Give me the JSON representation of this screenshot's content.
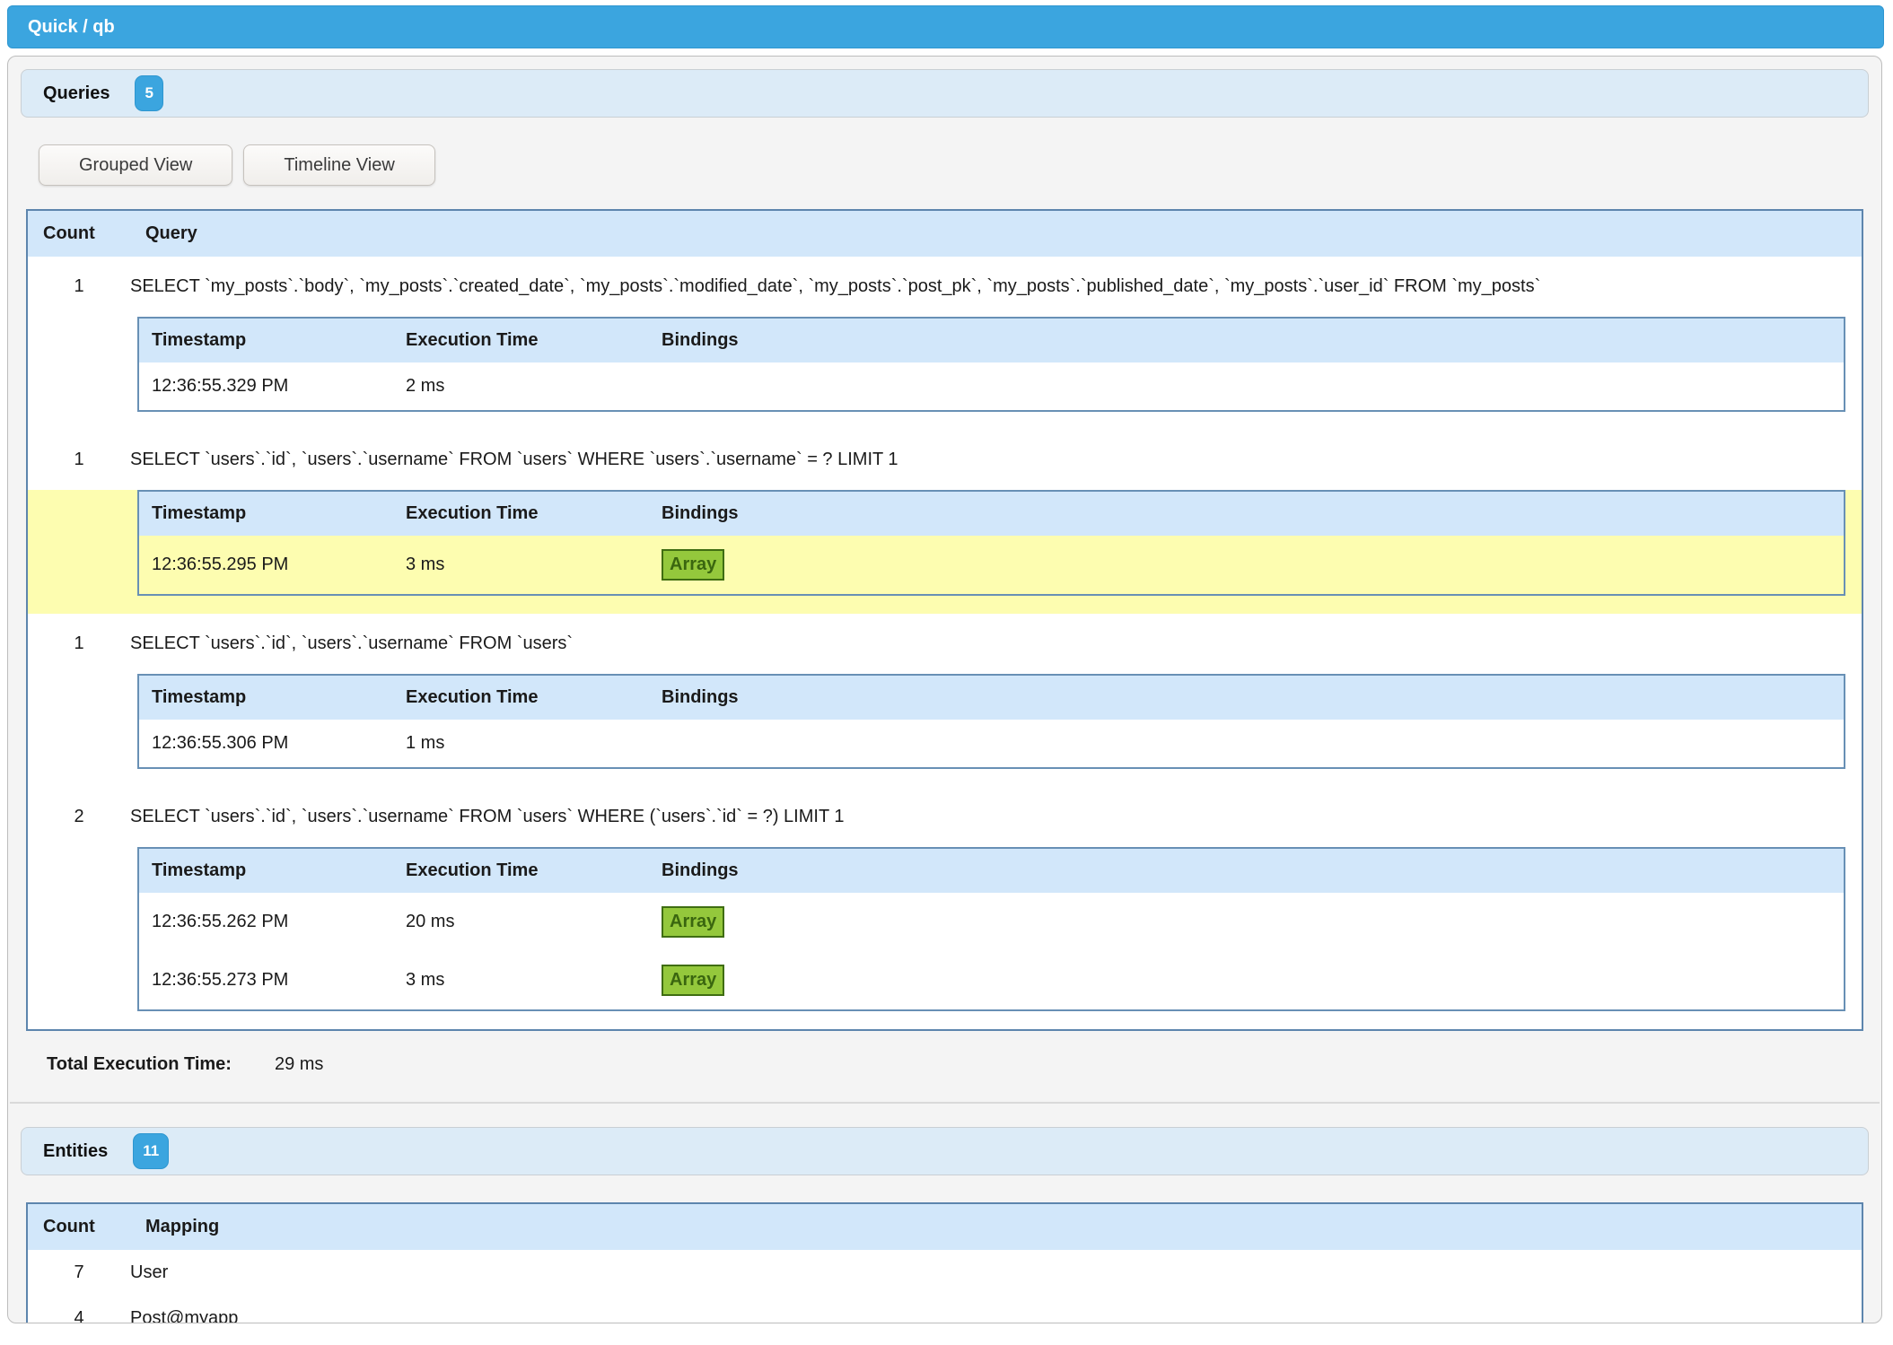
{
  "title_bar": {
    "title": "Quick / qb"
  },
  "queries_section": {
    "header": "Queries",
    "badge": "5",
    "buttons": {
      "grouped": "Grouped View",
      "timeline": "Timeline View"
    },
    "table": {
      "headers": {
        "count": "Count",
        "query": "Query"
      },
      "sub_headers": {
        "timestamp": "Timestamp",
        "execution_time": "Execution Time",
        "bindings": "Bindings"
      },
      "groups": [
        {
          "count": "1",
          "query": "SELECT `my_posts`.`body`, `my_posts`.`created_date`, `my_posts`.`modified_date`, `my_posts`.`post_pk`, `my_posts`.`published_date`, `my_posts`.`user_id` FROM `my_posts`",
          "highlight": false,
          "executions": [
            {
              "timestamp": "12:36:55.329 PM",
              "execution_time": "2 ms",
              "bindings": ""
            }
          ]
        },
        {
          "count": "1",
          "query": "SELECT `users`.`id`, `users`.`username` FROM `users` WHERE `users`.`username` = ? LIMIT 1",
          "highlight": true,
          "executions": [
            {
              "timestamp": "12:36:55.295 PM",
              "execution_time": "3 ms",
              "bindings": "Array"
            }
          ]
        },
        {
          "count": "1",
          "query": "SELECT `users`.`id`, `users`.`username` FROM `users`",
          "highlight": false,
          "executions": [
            {
              "timestamp": "12:36:55.306 PM",
              "execution_time": "1 ms",
              "bindings": ""
            }
          ]
        },
        {
          "count": "2",
          "query": "SELECT `users`.`id`, `users`.`username` FROM `users` WHERE (`users`.`id` = ?) LIMIT 1",
          "highlight": false,
          "executions": [
            {
              "timestamp": "12:36:55.262 PM",
              "execution_time": "20 ms",
              "bindings": "Array"
            },
            {
              "timestamp": "12:36:55.273 PM",
              "execution_time": "3 ms",
              "bindings": "Array"
            }
          ]
        }
      ]
    },
    "total_label": "Total Execution Time:",
    "total_value": "29 ms"
  },
  "entities_section": {
    "header": "Entities",
    "badge": "11",
    "table": {
      "headers": {
        "count": "Count",
        "mapping": "Mapping"
      },
      "rows": [
        {
          "count": "7",
          "mapping": "User"
        },
        {
          "count": "4",
          "mapping": "Post@myapp"
        }
      ]
    }
  },
  "colors": {
    "accent_blue": "#3BA5DF",
    "header_light_blue": "#D2E7FA",
    "section_header_blue": "#DCEBF7",
    "table_border_blue": "#5D85AD",
    "highlight_yellow": "#FDFDB0",
    "array_badge_green": "#94C83C",
    "array_badge_border_green": "#3F6D12",
    "panel_gray": "#F4F4F4"
  }
}
